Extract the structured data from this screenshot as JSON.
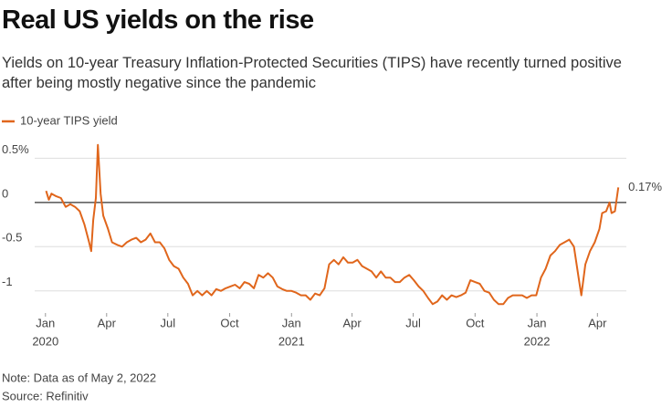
{
  "chart_data": {
    "type": "line",
    "title": "Real US yields on the rise",
    "subtitle": "Yields on 10-year Treasury Inflation-Protected Securities (TIPS) have recently turned positive after being mostly negative since the pandemic",
    "notes": [
      "Note: Data as of May 2, 2022",
      "Source: Refinitiv"
    ],
    "xlim": [
      "2019-12-16",
      "2022-05-14"
    ],
    "ylim": [
      -1.25,
      0.7
    ],
    "yticks": [
      {
        "value": 0.5,
        "label": "0.5%"
      },
      0,
      -0.5,
      -1
    ],
    "xticks": [
      {
        "value": "2020-01-01",
        "label": "Jan"
      },
      {
        "value": "2020-04-01",
        "label": "Apr"
      },
      {
        "value": "2020-07-01",
        "label": "Jul"
      },
      {
        "value": "2020-10-01",
        "label": "Oct"
      },
      {
        "value": "2021-01-01",
        "label": "Jan"
      },
      {
        "value": "2021-04-01",
        "label": "Apr"
      },
      {
        "value": "2021-07-01",
        "label": "Jul"
      },
      {
        "value": "2021-10-01",
        "label": "Oct"
      },
      {
        "value": "2022-01-01",
        "label": "Jan"
      },
      {
        "value": "2022-04-01",
        "label": "Apr"
      }
    ],
    "year_labels": [
      {
        "value": "2020-01-01",
        "label": "2020"
      },
      {
        "value": "2021-01-01",
        "label": "2021"
      },
      {
        "value": "2022-01-01",
        "label": "2022"
      }
    ],
    "grid": true,
    "legend": "top-left",
    "annotation": {
      "text": "0.17%",
      "x": "2022-05-02",
      "y": 0.17
    },
    "x": [
      "2020-01-02",
      "2020-01-06",
      "2020-01-10",
      "2020-01-17",
      "2020-01-24",
      "2020-01-31",
      "2020-02-07",
      "2020-02-14",
      "2020-02-21",
      "2020-02-28",
      "2020-03-06",
      "2020-03-09",
      "2020-03-12",
      "2020-03-16",
      "2020-03-19",
      "2020-03-23",
      "2020-03-27",
      "2020-04-03",
      "2020-04-09",
      "2020-04-17",
      "2020-04-24",
      "2020-05-01",
      "2020-05-08",
      "2020-05-15",
      "2020-05-22",
      "2020-05-29",
      "2020-06-05",
      "2020-06-12",
      "2020-06-19",
      "2020-06-26",
      "2020-07-03",
      "2020-07-10",
      "2020-07-17",
      "2020-07-24",
      "2020-07-31",
      "2020-08-07",
      "2020-08-14",
      "2020-08-21",
      "2020-08-28",
      "2020-09-04",
      "2020-09-11",
      "2020-09-18",
      "2020-09-25",
      "2020-10-02",
      "2020-10-09",
      "2020-10-16",
      "2020-10-23",
      "2020-10-30",
      "2020-11-06",
      "2020-11-13",
      "2020-11-20",
      "2020-11-27",
      "2020-12-04",
      "2020-12-11",
      "2020-12-18",
      "2020-12-25",
      "2021-01-01",
      "2021-01-08",
      "2021-01-15",
      "2021-01-22",
      "2021-01-29",
      "2021-02-05",
      "2021-02-12",
      "2021-02-19",
      "2021-02-26",
      "2021-03-05",
      "2021-03-12",
      "2021-03-19",
      "2021-03-26",
      "2021-04-02",
      "2021-04-09",
      "2021-04-16",
      "2021-04-23",
      "2021-04-30",
      "2021-05-07",
      "2021-05-14",
      "2021-05-21",
      "2021-05-28",
      "2021-06-04",
      "2021-06-11",
      "2021-06-18",
      "2021-06-25",
      "2021-07-02",
      "2021-07-09",
      "2021-07-16",
      "2021-07-23",
      "2021-07-30",
      "2021-08-06",
      "2021-08-13",
      "2021-08-20",
      "2021-08-27",
      "2021-09-03",
      "2021-09-10",
      "2021-09-17",
      "2021-09-24",
      "2021-10-01",
      "2021-10-08",
      "2021-10-15",
      "2021-10-22",
      "2021-10-29",
      "2021-11-05",
      "2021-11-12",
      "2021-11-19",
      "2021-11-26",
      "2021-12-03",
      "2021-12-10",
      "2021-12-17",
      "2021-12-24",
      "2021-12-31",
      "2022-01-07",
      "2022-01-14",
      "2022-01-21",
      "2022-01-28",
      "2022-02-04",
      "2022-02-11",
      "2022-02-18",
      "2022-02-25",
      "2022-03-04",
      "2022-03-08",
      "2022-03-14",
      "2022-03-21",
      "2022-03-28",
      "2022-04-04",
      "2022-04-08",
      "2022-04-14",
      "2022-04-19",
      "2022-04-22",
      "2022-04-27",
      "2022-05-02"
    ],
    "series": [
      {
        "name": "10-year TIPS yield",
        "color": "#e0661c",
        "values": [
          0.13,
          0.03,
          0.1,
          0.07,
          0.05,
          -0.05,
          -0.02,
          -0.05,
          -0.1,
          -0.25,
          -0.45,
          -0.55,
          -0.2,
          0.05,
          0.65,
          0.1,
          -0.15,
          -0.3,
          -0.45,
          -0.48,
          -0.5,
          -0.45,
          -0.42,
          -0.4,
          -0.45,
          -0.42,
          -0.35,
          -0.45,
          -0.45,
          -0.52,
          -0.65,
          -0.72,
          -0.75,
          -0.85,
          -0.92,
          -1.05,
          -1.0,
          -1.05,
          -1.0,
          -1.05,
          -0.98,
          -1.0,
          -0.97,
          -0.95,
          -0.93,
          -0.97,
          -0.9,
          -0.92,
          -0.97,
          -0.82,
          -0.85,
          -0.8,
          -0.85,
          -0.95,
          -0.98,
          -1.0,
          -1.0,
          -1.02,
          -1.05,
          -1.05,
          -1.1,
          -1.03,
          -1.05,
          -0.97,
          -0.7,
          -0.65,
          -0.7,
          -0.62,
          -0.68,
          -0.68,
          -0.65,
          -0.72,
          -0.75,
          -0.78,
          -0.85,
          -0.78,
          -0.85,
          -0.85,
          -0.9,
          -0.9,
          -0.85,
          -0.82,
          -0.88,
          -0.95,
          -1.0,
          -1.08,
          -1.15,
          -1.12,
          -1.05,
          -1.1,
          -1.05,
          -1.07,
          -1.05,
          -1.02,
          -0.88,
          -0.9,
          -0.92,
          -1.0,
          -1.02,
          -1.1,
          -1.15,
          -1.15,
          -1.08,
          -1.05,
          -1.05,
          -1.05,
          -1.08,
          -1.05,
          -1.05,
          -0.85,
          -0.75,
          -0.6,
          -0.55,
          -0.48,
          -0.45,
          -0.42,
          -0.5,
          -0.85,
          -1.05,
          -0.7,
          -0.55,
          -0.45,
          -0.3,
          -0.12,
          -0.1,
          0.0,
          -0.12,
          -0.1,
          0.17
        ]
      }
    ]
  }
}
